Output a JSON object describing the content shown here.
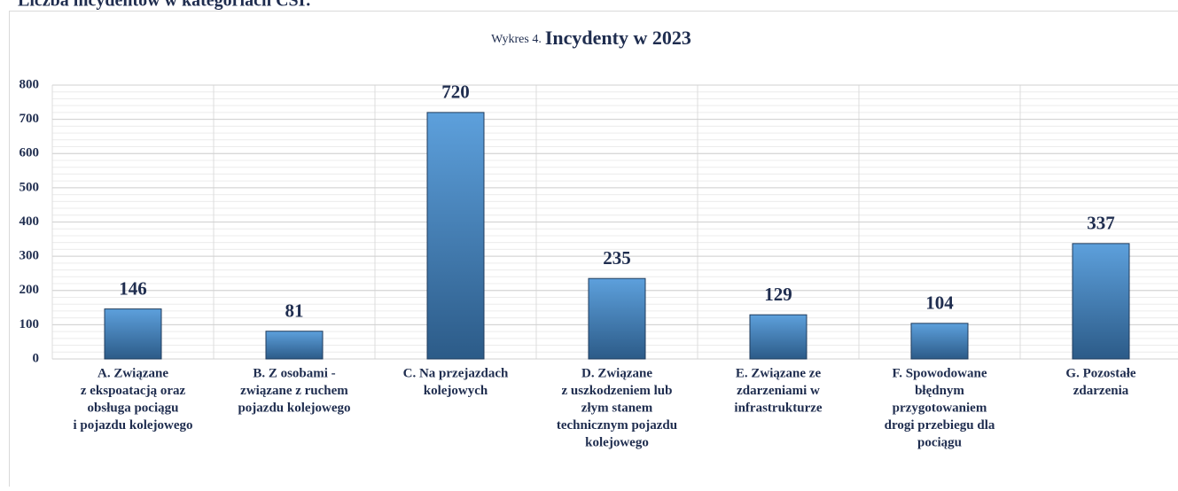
{
  "caption": "Liczba incydentów w kategoriach CSI:",
  "chart_data": {
    "type": "bar",
    "title_prefix": "Wykres 4.",
    "title": "Incydenty w 2023",
    "categories": [
      [
        "A. Związane",
        "z ekspoatacją oraz",
        "obsługa pociągu",
        "i pojazdu kolejowego"
      ],
      [
        "B. Z osobami -",
        "związane z ruchem",
        "pojazdu kolejowego"
      ],
      [
        "C. Na przejazdach",
        "kolejowych"
      ],
      [
        "D. Związane",
        "z uszkodzeniem lub",
        "złym stanem",
        "technicznym pojazdu",
        "kolejowego"
      ],
      [
        "E. Związane ze",
        "zdarzeniami w",
        "infrastrukturze"
      ],
      [
        "F. Spowodowane",
        "błędnym",
        "przygotowaniem",
        "drogi przebiegu dla",
        "pociągu"
      ],
      [
        "G. Pozostałe",
        "zdarzenia"
      ]
    ],
    "values": [
      146,
      81,
      720,
      235,
      129,
      104,
      337
    ],
    "color": "#4a86c5",
    "ylim": [
      0,
      800
    ],
    "yticks": [
      0,
      100,
      200,
      300,
      400,
      500,
      600,
      700,
      800
    ],
    "grid": true
  }
}
